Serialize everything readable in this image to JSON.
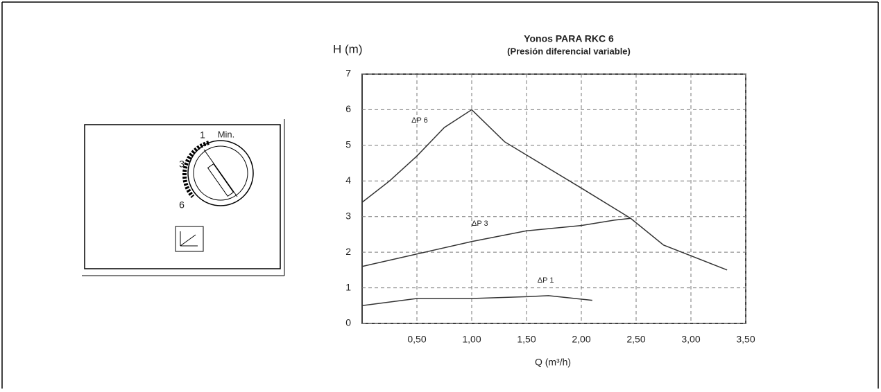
{
  "panel": {
    "dial_labels": [
      "1",
      "Min.",
      "3",
      "6"
    ]
  },
  "chart_data": {
    "type": "line",
    "title": "Yonos PARA RKC 6",
    "subtitle": "(Presión diferencial variable)",
    "y_label": "H (m)",
    "x_label": "Q (m³/h)",
    "xlim": [
      0,
      3.5
    ],
    "ylim": [
      0,
      7
    ],
    "xticks": [
      {
        "value": 0.5,
        "label": "0,50"
      },
      {
        "value": 1,
        "label": "1,00"
      },
      {
        "value": 1.5,
        "label": "1,50"
      },
      {
        "value": 2,
        "label": "2,00"
      },
      {
        "value": 2.5,
        "label": "2,50"
      },
      {
        "value": 3,
        "label": "3,00"
      },
      {
        "value": 3.5,
        "label": "3,50"
      }
    ],
    "yticks": [
      0,
      1,
      2,
      3,
      4,
      5,
      6,
      7
    ],
    "grid": true,
    "series": [
      {
        "name": "ΔP 6",
        "color": "#333333",
        "x": [
          0,
          0.25,
          0.5,
          0.75,
          1.0,
          1.3,
          2.0,
          2.45,
          2.75,
          3.0,
          3.33
        ],
        "values": [
          3.4,
          4.0,
          4.7,
          5.5,
          6.0,
          5.1,
          3.8,
          2.95,
          2.2,
          1.9,
          1.5
        ]
      },
      {
        "name": "ΔP 3",
        "color": "#333333",
        "x": [
          0,
          0.5,
          1.0,
          1.5,
          2.0,
          2.3,
          2.45
        ],
        "values": [
          1.6,
          1.95,
          2.3,
          2.6,
          2.75,
          2.9,
          2.95
        ]
      },
      {
        "name": "ΔP 1",
        "color": "#333333",
        "x": [
          0,
          0.5,
          1.0,
          1.5,
          1.7,
          2.1
        ],
        "values": [
          0.5,
          0.7,
          0.7,
          0.75,
          0.78,
          0.65
        ]
      }
    ]
  }
}
